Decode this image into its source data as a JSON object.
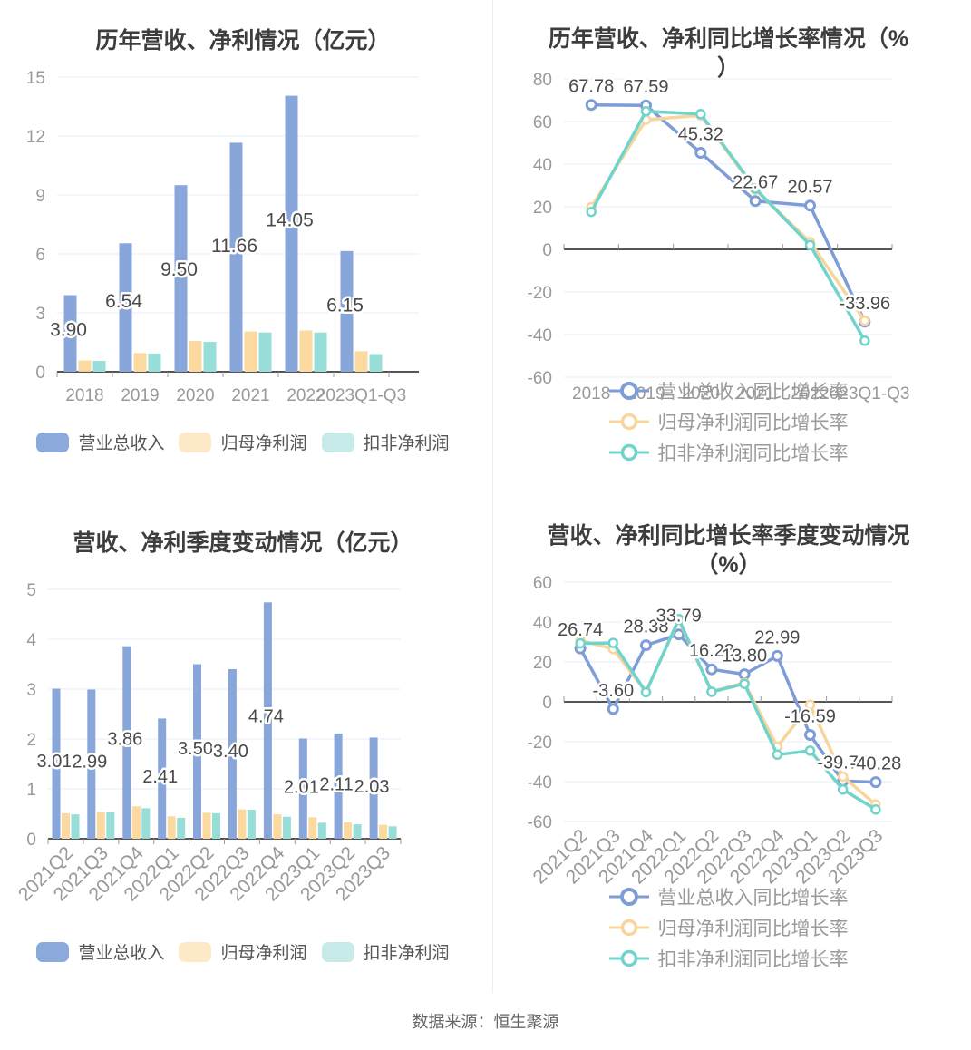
{
  "page": {
    "source_note": "数据来源：恒生聚源"
  },
  "palette": {
    "bar_blue": "#89A6DB",
    "bar_yellow": "#FBD99F",
    "bar_teal": "#97DED8",
    "line_blue": "#7E9CD6",
    "line_yellow": "#F8D59B",
    "line_teal": "#70D4CC",
    "legend_blue": "#8CA9DC",
    "legend_yellow": "#FDE9C7",
    "legend_teal": "#C6EBE8",
    "grid": "#E7EDF6",
    "axis": "#555555",
    "tick_text": "#999999",
    "value_label_text": "#4A4A4A",
    "title_text": "#3D3D3D"
  },
  "chart_data": [
    {
      "type": "bar",
      "title_line1": "历年营收、净利情况（亿元）",
      "title_line2": "",
      "categories": [
        "2018",
        "2019",
        "2020",
        "2021",
        "2022",
        "2023Q1-Q3"
      ],
      "ylim": [
        0,
        15
      ],
      "ystep": 3,
      "grid": true,
      "legend_position": "bottom-horizontal",
      "series": [
        {
          "name": "营业总收入",
          "color": "#89A6DB",
          "legend_color": "#8CA9DC",
          "show_labels": true,
          "values": [
            3.9,
            6.54,
            9.5,
            11.66,
            14.05,
            6.15
          ]
        },
        {
          "name": "归母净利润",
          "color": "#FBD99F",
          "legend_color": "#FDE9C7",
          "show_labels": false,
          "values": [
            0.57,
            0.95,
            1.57,
            2.05,
            2.1,
            1.05
          ]
        },
        {
          "name": "扣非净利润",
          "color": "#97DED8",
          "legend_color": "#C6EBE8",
          "show_labels": false,
          "values": [
            0.55,
            0.93,
            1.52,
            2.0,
            2.0,
            0.9
          ]
        }
      ]
    },
    {
      "type": "line",
      "title_line1": "历年营收、净利同比增长率情况（%",
      "title_line2": "）",
      "categories": [
        "2018",
        "2019",
        "2020",
        "2021",
        "2022",
        "2023Q1-Q3"
      ],
      "ylim": [
        -60,
        80
      ],
      "ystep": 20,
      "grid": true,
      "legend_position": "bottom-vertical",
      "series": [
        {
          "name": "营业总收入同比增长率",
          "color": "#7E9CD6",
          "show_labels": true,
          "values": [
            67.78,
            67.59,
            45.32,
            22.67,
            20.57,
            -33.96
          ]
        },
        {
          "name": "归母净利润同比增长率",
          "color": "#F8D59B",
          "show_labels": false,
          "values": [
            19.8,
            60.8,
            62.9,
            28.0,
            3.4,
            -33.5
          ]
        },
        {
          "name": "扣非净利润同比增长率",
          "color": "#70D4CC",
          "show_labels": false,
          "values": [
            17.6,
            64.8,
            63.5,
            28.5,
            2.0,
            -42.9
          ]
        }
      ]
    },
    {
      "type": "bar",
      "title_line1": "营收、净利季度变动情况（亿元）",
      "title_line2": "",
      "categories": [
        "2021Q2",
        "2021Q3",
        "2021Q4",
        "2022Q1",
        "2022Q2",
        "2022Q3",
        "2022Q4",
        "2023Q1",
        "2023Q2",
        "2023Q3"
      ],
      "ylim": [
        0,
        5
      ],
      "ystep": 1,
      "grid": true,
      "legend_position": "bottom-horizontal",
      "series": [
        {
          "name": "营业总收入",
          "color": "#89A6DB",
          "legend_color": "#8CA9DC",
          "show_labels": true,
          "values": [
            3.01,
            2.99,
            3.86,
            2.41,
            3.5,
            3.4,
            4.74,
            2.01,
            2.11,
            2.03
          ]
        },
        {
          "name": "归母净利润",
          "color": "#FBD99F",
          "legend_color": "#FDE9C7",
          "show_labels": false,
          "values": [
            0.51,
            0.54,
            0.65,
            0.45,
            0.52,
            0.59,
            0.49,
            0.43,
            0.33,
            0.28
          ]
        },
        {
          "name": "扣非净利润",
          "color": "#97DED8",
          "legend_color": "#C6EBE8",
          "show_labels": false,
          "values": [
            0.49,
            0.53,
            0.61,
            0.42,
            0.51,
            0.58,
            0.44,
            0.32,
            0.29,
            0.25
          ]
        }
      ]
    },
    {
      "type": "line",
      "title_line1": "营收、净利同比增长率季度变动情况",
      "title_line2": "（%）",
      "categories": [
        "2021Q2",
        "2021Q3",
        "2021Q4",
        "2022Q1",
        "2022Q2",
        "2022Q3",
        "2022Q4",
        "2023Q1",
        "2023Q2",
        "2023Q3"
      ],
      "ylim": [
        -60,
        60
      ],
      "ystep": 20,
      "grid": true,
      "legend_position": "bottom-vertical",
      "series": [
        {
          "name": "营业总收入同比增长率",
          "color": "#7E9CD6",
          "show_labels": true,
          "values": [
            26.74,
            -3.6,
            28.38,
            33.79,
            16.28,
            13.8,
            22.99,
            -16.59,
            -39.74,
            -40.28
          ]
        },
        {
          "name": "归母净利润同比增长率",
          "color": "#F8D59B",
          "show_labels": false,
          "values": [
            30.8,
            26.5,
            5.0,
            41.0,
            5.2,
            9.5,
            -22.5,
            -1.5,
            -37.5,
            -51.5
          ]
        },
        {
          "name": "扣非净利润同比增长率",
          "color": "#70D4CC",
          "show_labels": false,
          "values": [
            29.3,
            29.5,
            4.8,
            41.5,
            5.0,
            9.0,
            -26.5,
            -24.5,
            -44.0,
            -54.0
          ]
        }
      ]
    }
  ]
}
